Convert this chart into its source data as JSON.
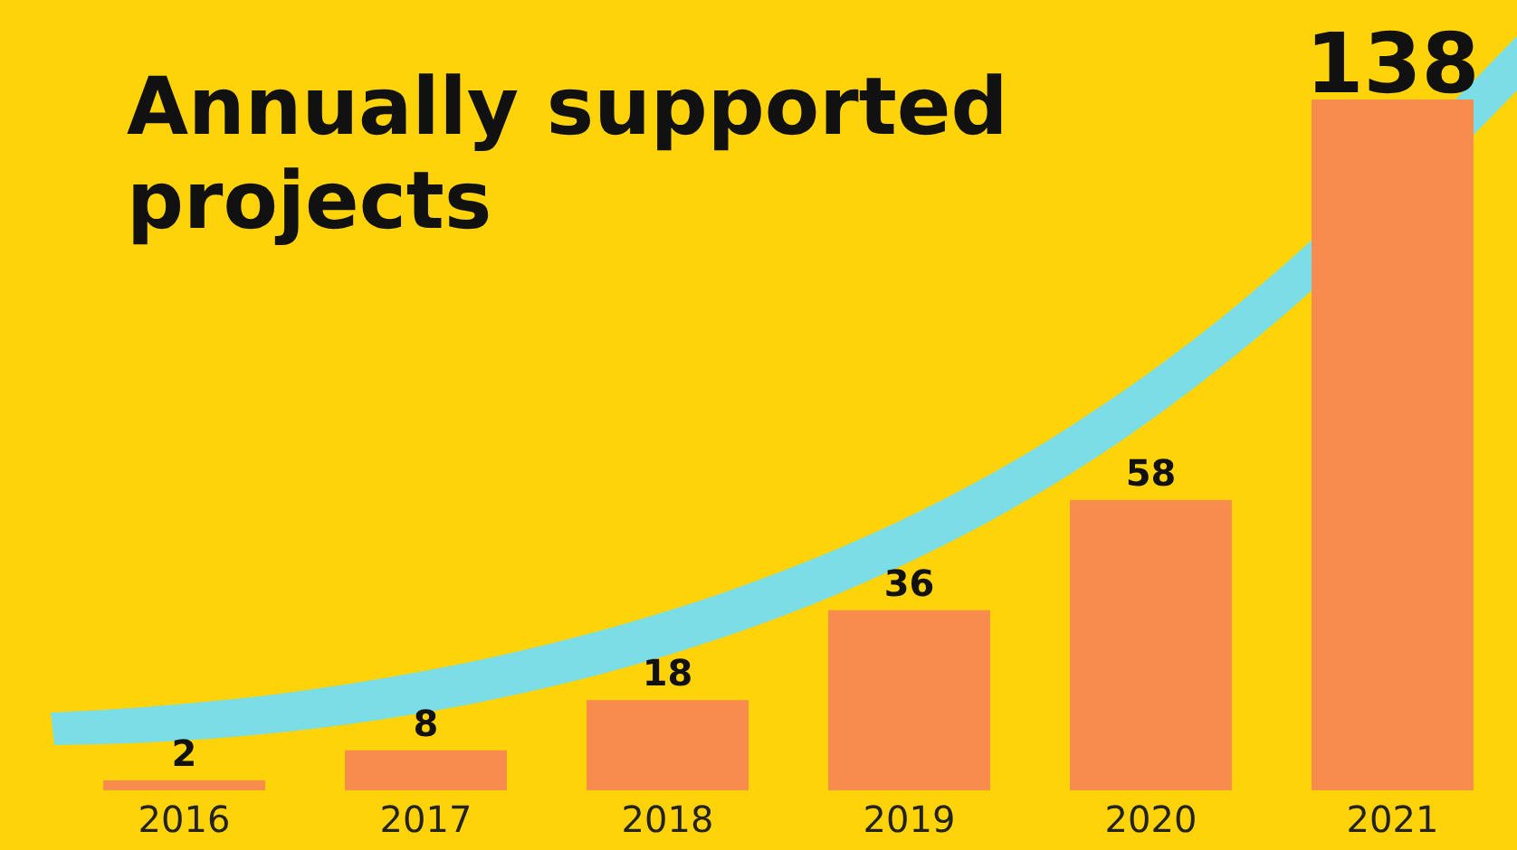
{
  "chart_data": {
    "type": "bar",
    "title": "Annually supported projects",
    "categories": [
      "2016",
      "2017",
      "2018",
      "2019",
      "2020",
      "2021"
    ],
    "values": [
      2,
      8,
      18,
      36,
      58,
      138
    ],
    "color": "#f78c4e",
    "data_labels": true
  }
}
